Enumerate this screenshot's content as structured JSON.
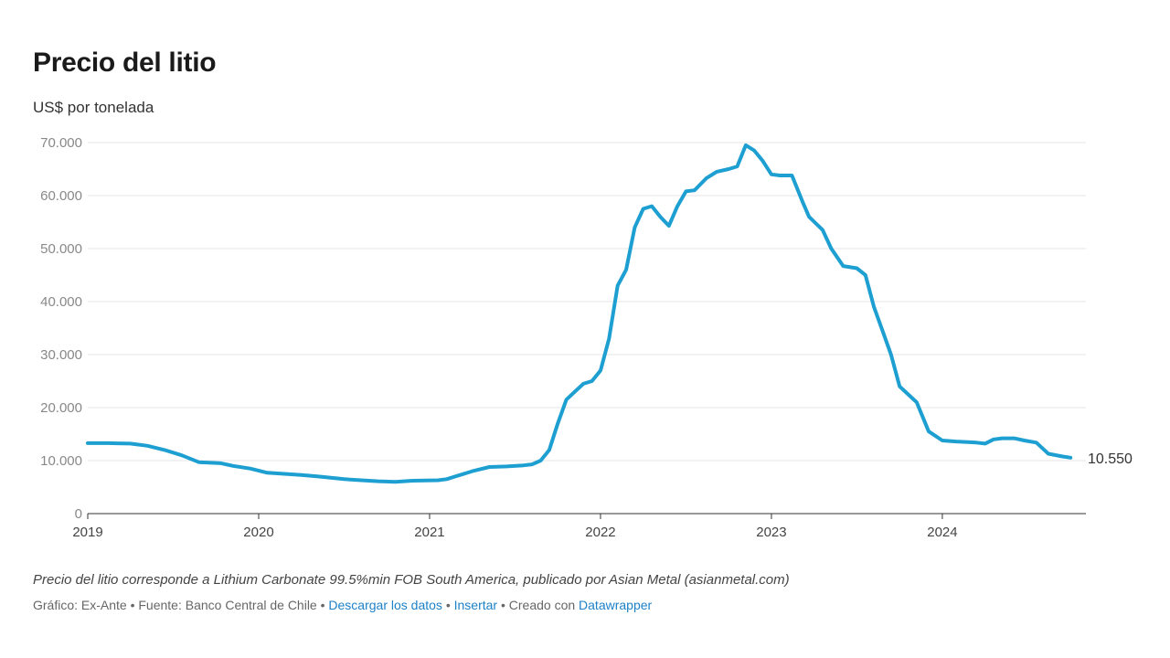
{
  "chart_data": {
    "type": "line",
    "title": "Precio del litio",
    "subtitle": "US$ por tonelada",
    "ylim": [
      0,
      70000
    ],
    "yticks": [
      0,
      10000,
      20000,
      30000,
      40000,
      50000,
      60000,
      70000
    ],
    "ytick_labels": [
      "0",
      "10.000",
      "20.000",
      "30.000",
      "40.000",
      "50.000",
      "60.000",
      "70.000"
    ],
    "xlim": [
      2019,
      2024.84
    ],
    "xticks": [
      2019,
      2020,
      2021,
      2022,
      2023,
      2024
    ],
    "xtick_labels": [
      "2019",
      "2020",
      "2021",
      "2022",
      "2023",
      "2024"
    ],
    "grid": true,
    "color": "#1d9fd1",
    "end_label": "10.550",
    "series": [
      {
        "x": [
          2019.0,
          2019.12,
          2019.25,
          2019.35,
          2019.45,
          2019.55,
          2019.65,
          2019.78,
          2019.85,
          2019.95,
          2020.05,
          2020.15,
          2020.25,
          2020.35,
          2020.5,
          2020.6,
          2020.7,
          2020.8,
          2020.9,
          2021.05,
          2021.1,
          2021.15,
          2021.25,
          2021.35,
          2021.45,
          2021.55,
          2021.6,
          2021.65,
          2021.7,
          2021.75,
          2021.8,
          2021.85,
          2021.9,
          2021.95,
          2022.0,
          2022.05,
          2022.1,
          2022.15,
          2022.2,
          2022.25,
          2022.3,
          2022.35,
          2022.4,
          2022.45,
          2022.5,
          2022.55,
          2022.62,
          2022.68,
          2022.75,
          2022.8,
          2022.85,
          2022.9,
          2022.95,
          2023.0,
          2023.05,
          2023.12,
          2023.18,
          2023.22,
          2023.3,
          2023.35,
          2023.42,
          2023.5,
          2023.55,
          2023.6,
          2023.65,
          2023.7,
          2023.75,
          2023.8,
          2023.85,
          2023.92,
          2024.0,
          2024.08,
          2024.15,
          2024.2,
          2024.25,
          2024.3,
          2024.35,
          2024.42,
          2024.48,
          2024.55,
          2024.62,
          2024.7,
          2024.75
        ],
        "y": [
          13300,
          13300,
          13200,
          12800,
          12000,
          11000,
          9700,
          9500,
          9000,
          8500,
          7700,
          7500,
          7300,
          7000,
          6500,
          6300,
          6100,
          6000,
          6200,
          6300,
          6500,
          7000,
          8000,
          8800,
          8900,
          9100,
          9300,
          10000,
          12000,
          17000,
          21500,
          23000,
          24500,
          25000,
          27000,
          33000,
          43000,
          46000,
          54000,
          57500,
          58000,
          56000,
          54300,
          58000,
          60800,
          61000,
          63300,
          64500,
          65000,
          65500,
          69500,
          68500,
          66500,
          64000,
          63800,
          63800,
          59000,
          56000,
          53500,
          50000,
          46700,
          46300,
          45000,
          39000,
          34500,
          30000,
          24000,
          22500,
          21000,
          15500,
          13800,
          13600,
          13500,
          13400,
          13200,
          14000,
          14200,
          14200,
          13800,
          13400,
          11300,
          10800,
          10550
        ]
      }
    ],
    "note": "Precio del litio corresponde a Lithium Carbonate 99.5%min FOB South America, publicado por Asian Metal (asianmetal.com)"
  },
  "footer": {
    "credit": "Gráfico: Ex-Ante • Fuente: Banco Central de Chile •",
    "download": "Descargar los datos",
    "sep": "•",
    "embed": "Insertar",
    "created": "• Creado con",
    "tool": "Datawrapper"
  }
}
